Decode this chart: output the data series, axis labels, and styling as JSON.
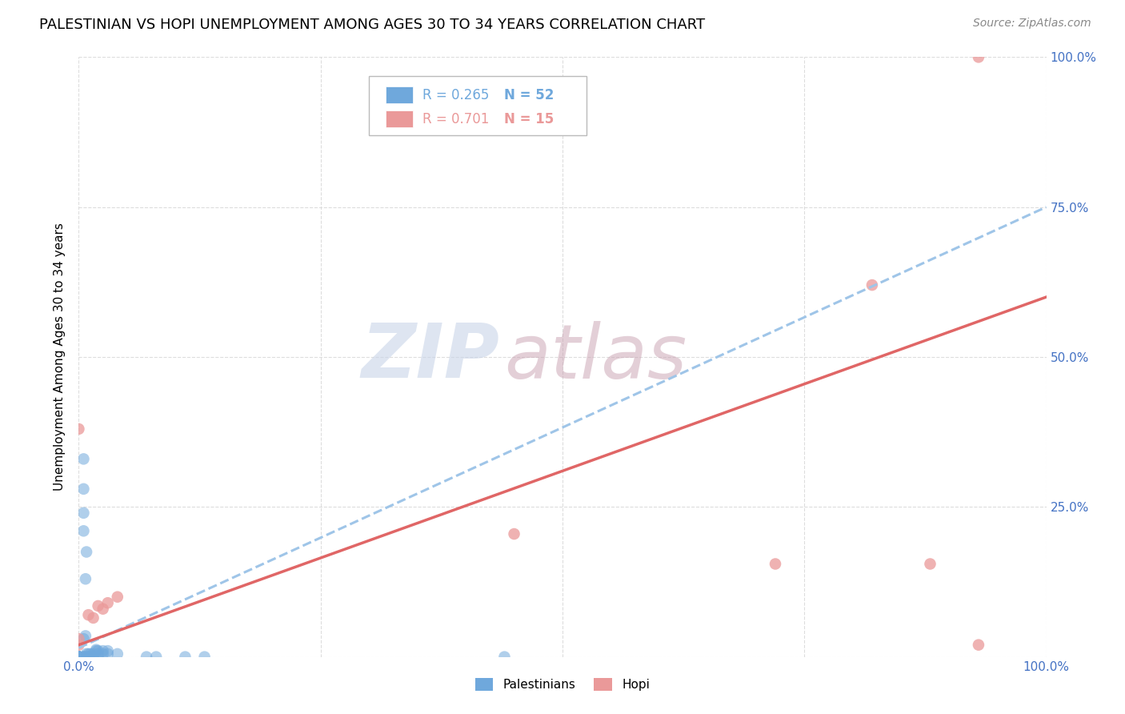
{
  "title": "PALESTINIAN VS HOPI UNEMPLOYMENT AMONG AGES 30 TO 34 YEARS CORRELATION CHART",
  "source": "Source: ZipAtlas.com",
  "ylabel": "Unemployment Among Ages 30 to 34 years",
  "xlim": [
    0,
    1
  ],
  "ylim": [
    0,
    1
  ],
  "xticks": [
    0.0,
    0.25,
    0.5,
    0.75,
    1.0
  ],
  "yticks": [
    0.0,
    0.25,
    0.5,
    0.75,
    1.0
  ],
  "xticklabels_bottom": [
    "0.0%",
    "",
    "",
    "",
    "100.0%"
  ],
  "right_yticklabels": [
    "",
    "25.0%",
    "50.0%",
    "75.0%",
    "100.0%"
  ],
  "palestinians_R": 0.265,
  "palestinians_N": 52,
  "hopi_R": 0.701,
  "hopi_N": 15,
  "palestinians_color": "#6fa8dc",
  "hopi_color": "#ea9999",
  "palestinians_scatter": [
    [
      0.0,
      0.0
    ],
    [
      0.0,
      0.0
    ],
    [
      0.0,
      0.0
    ],
    [
      0.0,
      0.0
    ],
    [
      0.0,
      0.0
    ],
    [
      0.0,
      0.0
    ],
    [
      0.0,
      0.0
    ],
    [
      0.0,
      0.0
    ],
    [
      0.0,
      0.0
    ],
    [
      0.0,
      0.0
    ],
    [
      0.0,
      0.0
    ],
    [
      0.0,
      0.0
    ],
    [
      0.0,
      0.0
    ],
    [
      0.0,
      0.0
    ],
    [
      0.0,
      0.0
    ],
    [
      0.005,
      0.0
    ],
    [
      0.005,
      0.0
    ],
    [
      0.005,
      0.0
    ],
    [
      0.008,
      0.0
    ],
    [
      0.008,
      0.005
    ],
    [
      0.01,
      0.0
    ],
    [
      0.01,
      0.0
    ],
    [
      0.01,
      0.005
    ],
    [
      0.012,
      0.005
    ],
    [
      0.015,
      0.0
    ],
    [
      0.015,
      0.005
    ],
    [
      0.018,
      0.01
    ],
    [
      0.018,
      0.012
    ],
    [
      0.02,
      0.0
    ],
    [
      0.02,
      0.005
    ],
    [
      0.02,
      0.01
    ],
    [
      0.025,
      0.005
    ],
    [
      0.025,
      0.01
    ],
    [
      0.03,
      0.005
    ],
    [
      0.03,
      0.01
    ],
    [
      0.04,
      0.005
    ],
    [
      0.005,
      0.03
    ],
    [
      0.007,
      0.035
    ],
    [
      0.005,
      0.28
    ],
    [
      0.005,
      0.33
    ],
    [
      0.005,
      0.21
    ],
    [
      0.005,
      0.24
    ],
    [
      0.008,
      0.175
    ],
    [
      0.007,
      0.13
    ],
    [
      0.07,
      0.0
    ],
    [
      0.08,
      0.0
    ],
    [
      0.11,
      0.0
    ],
    [
      0.13,
      0.0
    ],
    [
      0.44,
      0.0
    ],
    [
      0.0,
      0.0
    ],
    [
      0.0,
      0.0
    ],
    [
      0.0,
      0.0
    ]
  ],
  "hopi_scatter": [
    [
      0.0,
      0.38
    ],
    [
      0.0,
      0.03
    ],
    [
      0.0,
      0.02
    ],
    [
      0.01,
      0.07
    ],
    [
      0.015,
      0.065
    ],
    [
      0.02,
      0.085
    ],
    [
      0.025,
      0.08
    ],
    [
      0.03,
      0.09
    ],
    [
      0.04,
      0.1
    ],
    [
      0.45,
      0.205
    ],
    [
      0.72,
      0.155
    ],
    [
      0.82,
      0.62
    ],
    [
      0.88,
      0.155
    ],
    [
      0.93,
      1.0
    ],
    [
      0.93,
      0.02
    ]
  ],
  "background_color": "#ffffff",
  "grid_color": "#dddddd",
  "watermark_zip": "ZIP",
  "watermark_atlas": "atlas",
  "watermark_color_zip": "#c8d4e8",
  "watermark_color_atlas": "#c8a0b0",
  "palestinians_line_color": "#9fc5e8",
  "hopi_line_color": "#e06666",
  "title_fontsize": 13,
  "tick_color": "#4472c4",
  "marker_size": 110,
  "palestinians_trendline": [
    0.0,
    0.02,
    0.75
  ],
  "hopi_trendline": [
    0.0,
    0.02,
    0.58
  ]
}
